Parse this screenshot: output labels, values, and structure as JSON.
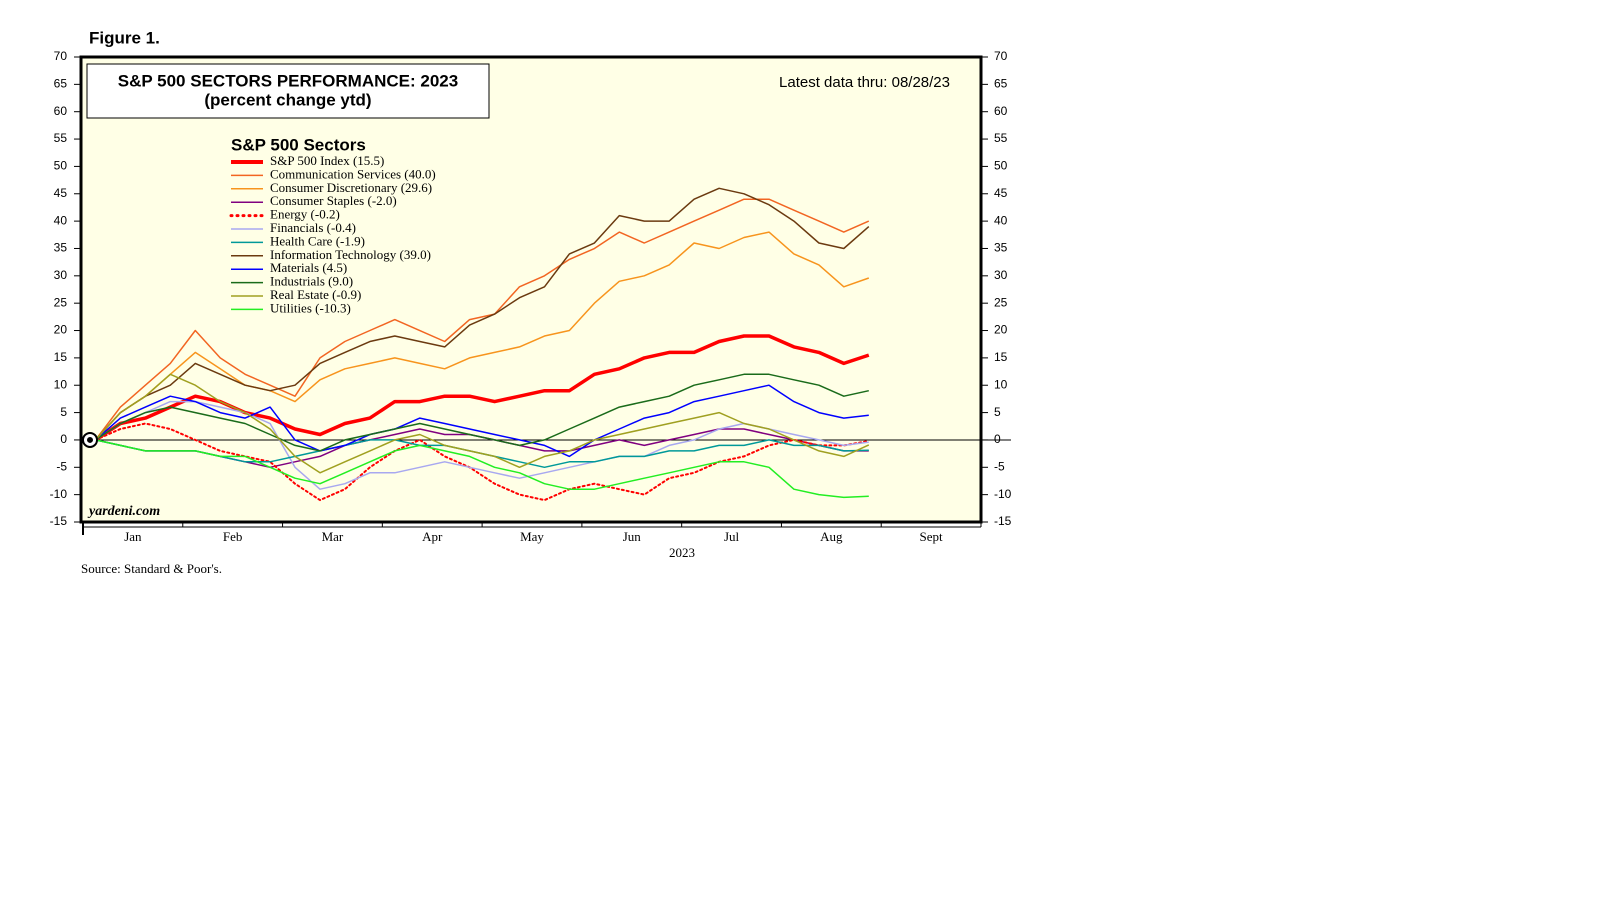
{
  "chart_data": {
    "type": "line",
    "figure_label": "Figure 1.",
    "title": "S&P 500 SECTORS PERFORMANCE: 2023",
    "subtitle": "(percent change ytd)",
    "annotation": "Latest data thru: 08/28/23",
    "legend_title": "S&P 500 Sectors",
    "watermark": "yardeni.com",
    "xlabel": "2023",
    "source": "Source: Standard & Poor's.",
    "ylim": [
      -15,
      70
    ],
    "yticks": [
      -15,
      -10,
      -5,
      0,
      5,
      10,
      15,
      20,
      25,
      30,
      35,
      40,
      45,
      50,
      55,
      60,
      65,
      70
    ],
    "categories": [
      null,
      null,
      "Jan",
      null,
      null,
      null,
      "Feb",
      null,
      null,
      null,
      "Mar",
      null,
      null,
      null,
      "Apr",
      null,
      null,
      null,
      "May",
      null,
      null,
      null,
      "Jun",
      null,
      null,
      null,
      "Jul",
      null,
      null,
      null,
      "Aug",
      null,
      null,
      null,
      "Sept",
      null
    ],
    "series": [
      {
        "name": "S&P 500 Index (15.5)",
        "color": "#ff0000",
        "width": 3.5,
        "style": "solid",
        "values": [
          0,
          3,
          4,
          6,
          8,
          7,
          5,
          4,
          2,
          1,
          3,
          4,
          7,
          7,
          8,
          8,
          7,
          8,
          9,
          9,
          12,
          13,
          15,
          16,
          16,
          18,
          19,
          19,
          17,
          16,
          14,
          15.5,
          null,
          null,
          null,
          null
        ]
      },
      {
        "name": "Communication Services (40.0)",
        "color": "#f26522",
        "width": 1.5,
        "style": "solid",
        "values": [
          0,
          6,
          10,
          14,
          20,
          15,
          12,
          10,
          8,
          15,
          18,
          20,
          22,
          20,
          18,
          22,
          23,
          28,
          30,
          33,
          35,
          38,
          36,
          38,
          40,
          42,
          44,
          44,
          42,
          40,
          38,
          40,
          null,
          null,
          null,
          null
        ]
      },
      {
        "name": "Consumer Discretionary (29.6)",
        "color": "#f7941d",
        "width": 1.5,
        "style": "solid",
        "values": [
          0,
          5,
          8,
          12,
          16,
          13,
          10,
          9,
          7,
          11,
          13,
          14,
          15,
          14,
          13,
          15,
          16,
          17,
          19,
          20,
          25,
          29,
          30,
          32,
          36,
          35,
          37,
          38,
          34,
          32,
          28,
          29.6,
          null,
          null,
          null,
          null
        ]
      },
      {
        "name": "Consumer Staples (-2.0)",
        "color": "#800080",
        "width": 1.5,
        "style": "solid",
        "values": [
          0,
          -1,
          -2,
          -2,
          -2,
          -3,
          -4,
          -5,
          -4,
          -3,
          -1,
          0,
          1,
          2,
          1,
          1,
          0,
          -1,
          -2,
          -2,
          -1,
          0,
          -1,
          0,
          1,
          2,
          2,
          1,
          0,
          -1,
          -2,
          -2,
          null,
          null,
          null,
          null
        ]
      },
      {
        "name": "Energy (-0.2)",
        "color": "#ff0000",
        "width": 2,
        "style": "dotted",
        "values": [
          0,
          2,
          3,
          2,
          0,
          -2,
          -3,
          -4,
          -8,
          -11,
          -9,
          -5,
          -2,
          0,
          -3,
          -5,
          -8,
          -10,
          -11,
          -9,
          -8,
          -9,
          -10,
          -7,
          -6,
          -4,
          -3,
          -1,
          0,
          -1,
          -1,
          -0.2,
          null,
          null,
          null,
          null
        ]
      },
      {
        "name": "Financials (-0.4)",
        "color": "#a8a8f0",
        "width": 1.5,
        "style": "solid",
        "values": [
          0,
          3,
          5,
          7,
          7,
          6,
          5,
          3,
          -5,
          -9,
          -8,
          -6,
          -6,
          -5,
          -4,
          -5,
          -6,
          -7,
          -6,
          -5,
          -4,
          -3,
          -3,
          -1,
          0,
          2,
          3,
          2,
          1,
          0,
          -1,
          -0.4,
          null,
          null,
          null,
          null
        ]
      },
      {
        "name": "Health Care (-1.9)",
        "color": "#009999",
        "width": 1.5,
        "style": "solid",
        "values": [
          0,
          -1,
          -2,
          -2,
          -2,
          -3,
          -4,
          -4,
          -3,
          -2,
          -1,
          0,
          0,
          -1,
          -1,
          -2,
          -3,
          -4,
          -5,
          -4,
          -4,
          -3,
          -3,
          -2,
          -2,
          -1,
          -1,
          0,
          -1,
          -1,
          -2,
          -1.9,
          null,
          null,
          null,
          null
        ]
      },
      {
        "name": "Information Technology (39.0)",
        "color": "#6b3a10",
        "width": 1.5,
        "style": "solid",
        "values": [
          0,
          5,
          8,
          10,
          14,
          12,
          10,
          9,
          10,
          14,
          16,
          18,
          19,
          18,
          17,
          21,
          23,
          26,
          28,
          34,
          36,
          41,
          40,
          40,
          44,
          46,
          45,
          43,
          40,
          36,
          35,
          39,
          null,
          null,
          null,
          null
        ]
      },
      {
        "name": "Materials (4.5)",
        "color": "#0000ff",
        "width": 1.5,
        "style": "solid",
        "values": [
          0,
          4,
          6,
          8,
          7,
          5,
          4,
          6,
          0,
          -2,
          -1,
          1,
          2,
          4,
          3,
          2,
          1,
          0,
          -1,
          -3,
          0,
          2,
          4,
          5,
          7,
          8,
          9,
          10,
          7,
          5,
          4,
          4.5,
          null,
          null,
          null,
          null
        ]
      },
      {
        "name": "Industrials (9.0)",
        "color": "#1a6b1a",
        "width": 1.5,
        "style": "solid",
        "values": [
          0,
          3,
          5,
          6,
          5,
          4,
          3,
          1,
          -1,
          -2,
          0,
          1,
          2,
          3,
          2,
          1,
          0,
          -1,
          0,
          2,
          4,
          6,
          7,
          8,
          10,
          11,
          12,
          12,
          11,
          10,
          8,
          9,
          null,
          null,
          null,
          null
        ]
      },
      {
        "name": "Real Estate (-0.9)",
        "color": "#a0a020",
        "width": 1.5,
        "style": "solid",
        "values": [
          0,
          5,
          8,
          12,
          10,
          7,
          5,
          2,
          -3,
          -6,
          -4,
          -2,
          0,
          1,
          -1,
          -2,
          -3,
          -5,
          -3,
          -2,
          0,
          1,
          2,
          3,
          4,
          5,
          3,
          2,
          0,
          -2,
          -3,
          -0.9,
          null,
          null,
          null,
          null
        ]
      },
      {
        "name": "Utilities (-10.3)",
        "color": "#22ee22",
        "width": 1.5,
        "style": "solid",
        "values": [
          0,
          -1,
          -2,
          -2,
          -2,
          -3,
          -3,
          -5,
          -7,
          -8,
          -6,
          -4,
          -2,
          -1,
          -2,
          -3,
          -5,
          -6,
          -8,
          -9,
          -9,
          -8,
          -7,
          -6,
          -5,
          -4,
          -4,
          -5,
          -9,
          -10,
          -10.5,
          -10.3,
          null,
          null,
          null,
          null
        ]
      }
    ]
  }
}
